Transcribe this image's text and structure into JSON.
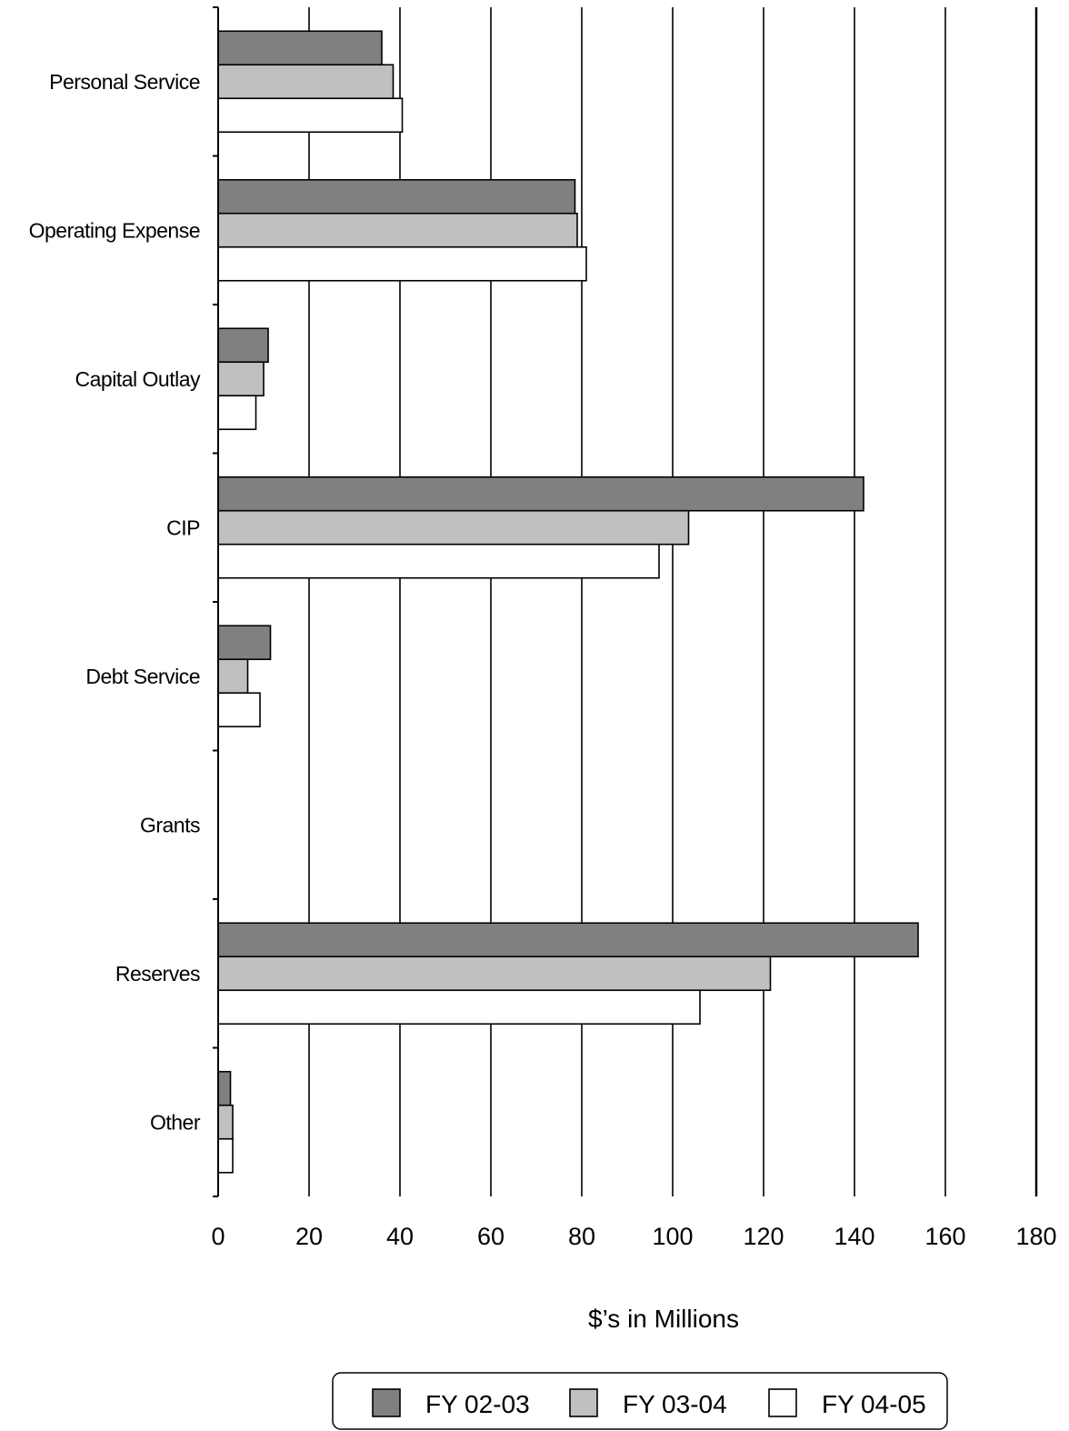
{
  "chart_data": {
    "type": "bar",
    "orientation": "horizontal",
    "categories": [
      "Personal Service",
      "Operating Expense",
      "Capital Outlay",
      "CIP",
      "Debt Service",
      "Grants",
      "Reserves",
      "Other"
    ],
    "series": [
      {
        "name": "FY 02-03",
        "color": "#808080",
        "values": [
          36,
          78.5,
          11,
          142,
          11.5,
          0,
          154,
          2.7
        ]
      },
      {
        "name": "FY 03-04",
        "color": "#c0c0c0",
        "values": [
          38.5,
          79,
          10,
          103.5,
          6.5,
          0,
          121.5,
          3.2
        ]
      },
      {
        "name": "FY 04-05",
        "color": "#ffffff",
        "values": [
          40.5,
          81,
          8.3,
          97,
          9.2,
          0,
          106,
          3.2
        ]
      }
    ],
    "xlabel": "$’s in Millions",
    "ylabel": "",
    "xlim": [
      0,
      180
    ],
    "xticks": [
      "0",
      "20",
      "40",
      "60",
      "80",
      "100",
      "120",
      "140",
      "160",
      "180"
    ],
    "grid": "vertical",
    "legend_position": "bottom"
  }
}
